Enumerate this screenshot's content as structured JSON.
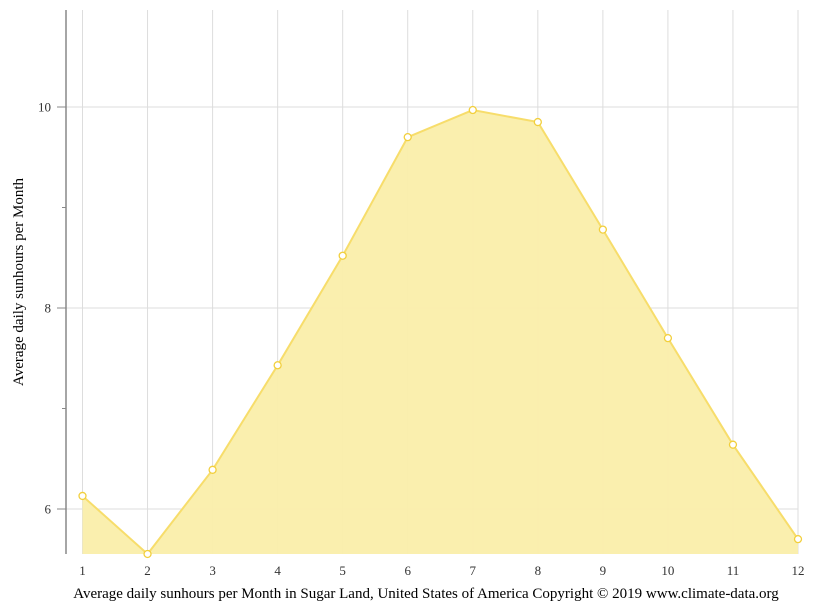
{
  "chart_data": {
    "type": "area",
    "title": "Average daily sunhours per Month in Sugar Land, United States of America Copyright © 2019 www.climate-data.org",
    "xlabel": "Average daily sunhours per Month in Sugar Land, United States of America Copyright © 2019 www.climate-data.org",
    "ylabel": "Average daily sunhours per Month",
    "categories": [
      "1",
      "2",
      "3",
      "4",
      "5",
      "6",
      "7",
      "8",
      "9",
      "10",
      "11",
      "12"
    ],
    "series": [
      {
        "name": "Average daily sunhours",
        "values": [
          6.13,
          5.55,
          6.39,
          7.43,
          8.52,
          9.7,
          9.97,
          9.85,
          8.78,
          7.7,
          6.64,
          5.7
        ],
        "color": "#f5d94a",
        "fill": "#faeeaa"
      }
    ],
    "ylim": [
      5.55,
      10.96
    ],
    "yticks": [
      6,
      8,
      10
    ],
    "y_minor_ticks": [
      7,
      9
    ],
    "grid": true,
    "legend": "none"
  },
  "colors": {
    "grid": "#dddddd",
    "axis": "#888888",
    "line": "#f7dd6b",
    "fill": "#faeeaa",
    "marker_stroke": "#f2cf3c",
    "marker_fill": "#ffffff"
  }
}
